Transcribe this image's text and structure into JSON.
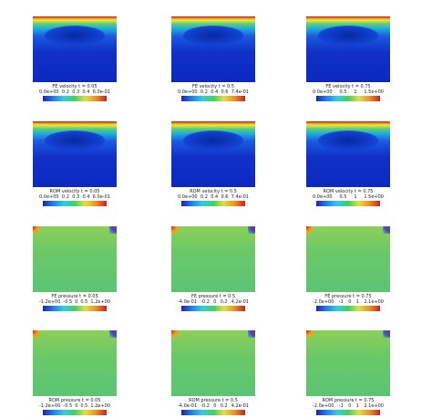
{
  "panels": [
    {
      "label": "FE velocity t = 0.05",
      "ticks": [
        "0.0e+00",
        "0.2",
        "0.3",
        "0.4",
        "6.0e-01"
      ]
    },
    {
      "label": "FE velocity t = 0.5",
      "ticks": [
        "0.0e+00",
        "0.2",
        "0.4",
        "0.6",
        "7.4e-01"
      ]
    },
    {
      "label": "FE velocity t = 0.75",
      "ticks": [
        "0.0e+00",
        "0.5",
        "1",
        "1.5e+00"
      ]
    },
    {
      "label": "ROM velocity t = 0.05",
      "ticks": [
        "0.0e+00",
        "0.2",
        "0.3",
        "0.4",
        "6.0e-01"
      ]
    },
    {
      "label": "ROM velocity t = 0.5",
      "ticks": [
        "0.0e+00",
        "0.2",
        "0.4",
        "0.6",
        "7.4e-01"
      ]
    },
    {
      "label": "ROM velocity t = 0.75",
      "ticks": [
        "0.0e+00",
        "0.5",
        "1",
        "1.5e+00"
      ]
    },
    {
      "label": "FE pressure t = 0.05",
      "ticks": [
        "-1.2e+00",
        "-0.5",
        "0",
        "0.5",
        "1.2e+00"
      ]
    },
    {
      "label": "FE pressure t = 0.5",
      "ticks": [
        "-4.0e-01",
        "-0.2",
        "0",
        "0.2",
        "4.2e-01"
      ]
    },
    {
      "label": "FE pressure t = 0.75",
      "ticks": [
        "-2.0e+00",
        "-1",
        "0",
        "1",
        "2.1e+00"
      ]
    },
    {
      "label": "ROM pressure t = 0.05",
      "ticks": [
        "-1.2e+00",
        "-0.5",
        "0",
        "0.5",
        "1.2e+00"
      ]
    },
    {
      "label": "ROM pressure t = 0.5",
      "ticks": [
        "-4.0e-01",
        "-0.2",
        "0",
        "0.2",
        "4.2e-01"
      ]
    },
    {
      "label": "ROM pressure t = 0.75",
      "ticks": [
        "-2.0e+00",
        "-1",
        "0",
        "1",
        "2.1e+00"
      ]
    }
  ]
}
